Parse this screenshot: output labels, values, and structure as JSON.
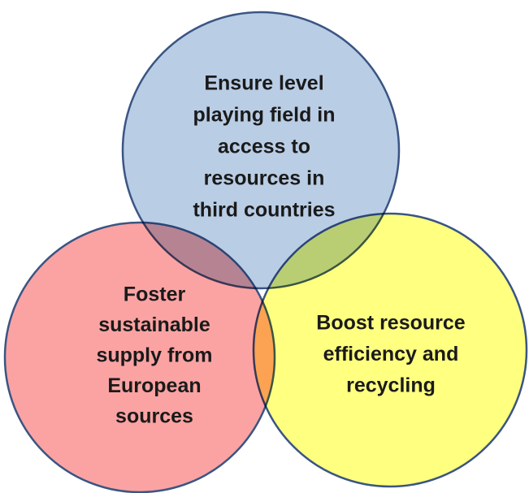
{
  "nodes": [
    {
      "label": [
        "Ensure level",
        "playing field in",
        "access to",
        "resources in",
        "third countries"
      ]
    },
    {
      "label": [
        "Foster",
        "sustainable",
        "supply from",
        "European",
        "sources"
      ]
    },
    {
      "label": [
        "Boost resource",
        "efficiency and",
        "recycling"
      ]
    }
  ]
}
